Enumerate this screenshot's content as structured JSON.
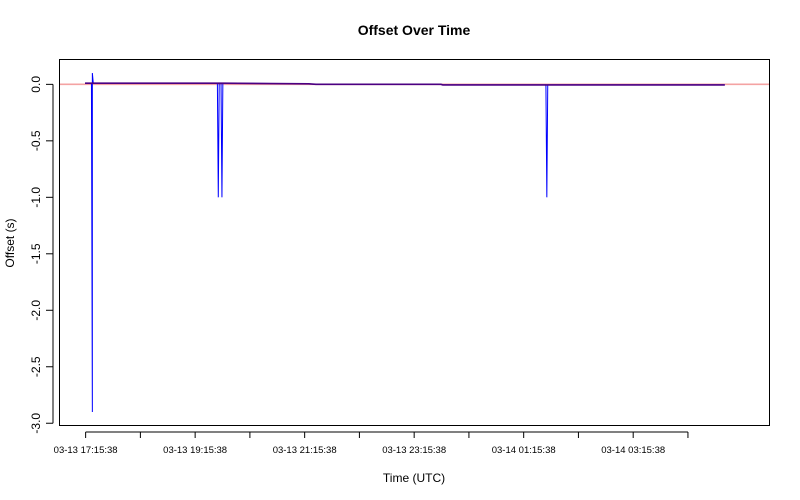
{
  "chart_data": {
    "type": "line",
    "title": "Offset Over Time",
    "xlabel": "Time (UTC)",
    "ylabel": "Offset (s)",
    "x_axis_type": "time",
    "x_range": [
      "03-13 16:47",
      "03-14 05:45"
    ],
    "x_tick_positions": [
      "03-13 17:15:38",
      "03-13 18:15:38",
      "03-13 19:15:38",
      "03-13 20:15:38",
      "03-13 21:15:38",
      "03-13 22:15:38",
      "03-13 23:15:38",
      "03-14 00:15:38",
      "03-14 01:15:38",
      "03-14 02:15:38",
      "03-14 03:15:38",
      "03-14 04:15:38"
    ],
    "x_tick_labels": [
      "03-13 17:15:38",
      "03-13 19:15:38",
      "03-13 21:15:38",
      "03-13 23:15:38",
      "03-14 01:15:38",
      "03-14 03:15:38"
    ],
    "y_ticks": [
      0.0,
      -0.5,
      -1.0,
      -1.5,
      -2.0,
      -2.5,
      -3.0
    ],
    "y_tick_labels": [
      "0.0",
      "-0.5",
      "-1.0",
      "-1.5",
      "-2.0",
      "-2.5",
      "-3.0"
    ],
    "ylim": [
      -3.02,
      0.22
    ],
    "grid": false,
    "legend": false,
    "reference_line": {
      "y": 0.0,
      "color": "#f4a3a3"
    },
    "series": [
      {
        "color": "#0000ff",
        "points": [
          [
            "03-13 17:15",
            0.01
          ],
          [
            "03-13 17:22",
            0.01
          ],
          [
            "03-13 17:23",
            -2.9
          ],
          [
            "03-13 17:23",
            0.1
          ],
          [
            "03-13 17:24",
            0.01
          ],
          [
            "03-13 18:40",
            0.01
          ],
          [
            "03-13 19:40",
            0.01
          ],
          [
            "03-13 19:41",
            -1.0
          ],
          [
            "03-13 19:42",
            0.01
          ],
          [
            "03-13 19:44",
            0.01
          ],
          [
            "03-13 19:45",
            -1.0
          ],
          [
            "03-13 19:46",
            0.01
          ],
          [
            "03-13 21:20",
            0.005
          ],
          [
            "03-13 21:28",
            0.0
          ],
          [
            "03-13 23:45",
            0.0
          ],
          [
            "03-13 23:47",
            -0.005
          ],
          [
            "03-14 01:40",
            -0.005
          ],
          [
            "03-14 01:41",
            -1.0
          ],
          [
            "03-14 01:42",
            -0.005
          ],
          [
            "03-14 04:56",
            -0.005
          ]
        ]
      }
    ]
  }
}
